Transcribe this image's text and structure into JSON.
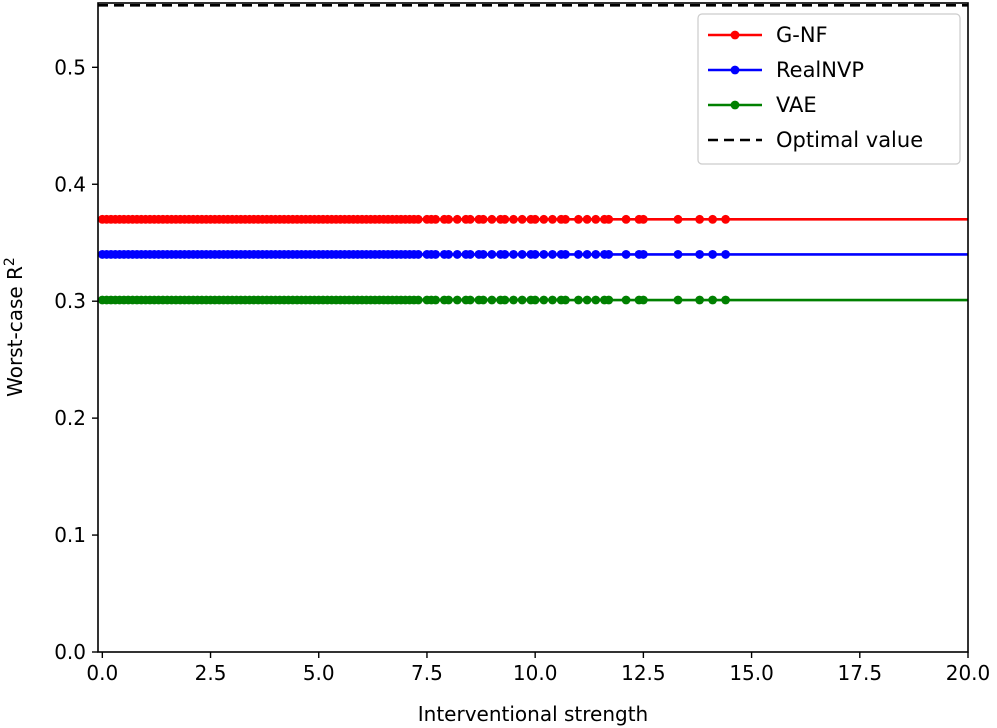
{
  "chart_data": {
    "type": "line",
    "xlabel": "Interventional strength",
    "ylabel": "Worst-case R",
    "ylabel_superscript": "2",
    "xlim": [
      -0.1,
      20.0
    ],
    "ylim": [
      0.0,
      0.555
    ],
    "xticks": [
      0.0,
      2.5,
      5.0,
      7.5,
      10.0,
      12.5,
      15.0,
      17.5,
      20.0
    ],
    "xtick_labels": [
      "0.0",
      "2.5",
      "5.0",
      "7.5",
      "10.0",
      "12.5",
      "15.0",
      "17.5",
      "20.0"
    ],
    "yticks": [
      0.0,
      0.1,
      0.2,
      0.3,
      0.4,
      0.5
    ],
    "ytick_labels": [
      "0.0",
      "0.1",
      "0.2",
      "0.3",
      "0.4",
      "0.5"
    ],
    "grid": false,
    "legend_position": "top-right",
    "x_points": [
      0.0,
      0.1,
      0.2,
      0.3,
      0.4,
      0.5,
      0.6,
      0.7,
      0.8,
      0.9,
      1.0,
      1.1,
      1.2,
      1.3,
      1.4,
      1.5,
      1.6,
      1.7,
      1.8,
      1.9,
      2.0,
      2.1,
      2.2,
      2.3,
      2.4,
      2.5,
      2.6,
      2.7,
      2.8,
      2.9,
      3.0,
      3.1,
      3.2,
      3.3,
      3.4,
      3.5,
      3.6,
      3.7,
      3.8,
      3.9,
      4.0,
      4.1,
      4.2,
      4.3,
      4.4,
      4.5,
      4.6,
      4.7,
      4.8,
      4.9,
      5.0,
      5.1,
      5.2,
      5.3,
      5.4,
      5.5,
      5.6,
      5.7,
      5.8,
      5.9,
      6.0,
      6.1,
      6.2,
      6.3,
      6.4,
      6.5,
      6.6,
      6.7,
      6.8,
      6.9,
      7.0,
      7.1,
      7.2,
      7.3,
      7.5,
      7.6,
      7.7,
      7.9,
      8.0,
      8.2,
      8.4,
      8.5,
      8.7,
      8.8,
      9.0,
      9.2,
      9.3,
      9.5,
      9.7,
      9.9,
      10.0,
      10.2,
      10.4,
      10.6,
      10.7,
      11.0,
      11.2,
      11.4,
      11.6,
      11.7,
      12.1,
      12.4,
      12.5,
      13.3,
      13.8,
      14.1,
      14.4
    ],
    "series": [
      {
        "name": "G-NF",
        "color": "#ff0000",
        "y": 0.37,
        "x_end": 20.0
      },
      {
        "name": "RealNVP",
        "color": "#0000ff",
        "y": 0.34,
        "x_end": 20.0
      },
      {
        "name": "VAE",
        "color": "#008000",
        "y": 0.301,
        "x_end": 20.0
      },
      {
        "name": "Optimal value",
        "color": "#000000",
        "y": 0.553,
        "dashed": true
      }
    ]
  }
}
